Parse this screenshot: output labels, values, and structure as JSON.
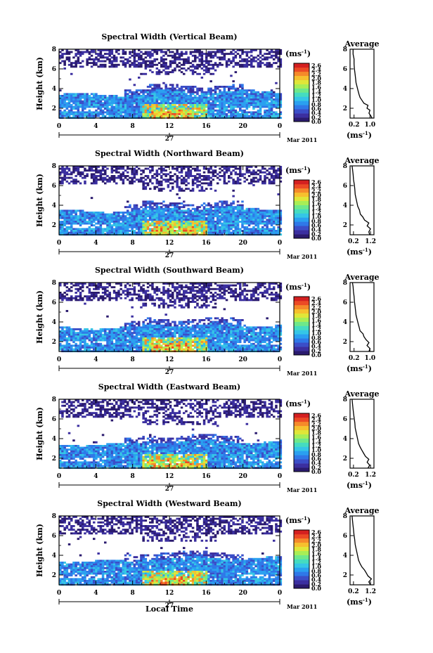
{
  "chart_data": [
    {
      "type": "heatmap",
      "title": "Spectral Width (Vertical Beam)",
      "ylabel": "Height (km)",
      "y_ticks": [
        "2",
        "4",
        "6",
        "8"
      ],
      "x_ticks": [
        "0",
        "4",
        "8",
        "12",
        "16",
        "20",
        "0"
      ],
      "day_label": "27",
      "date_label": "Mar 2011",
      "xlim": [
        0,
        24
      ],
      "ylim": [
        1,
        8
      ],
      "colorbar": {
        "units": "(ms",
        "units_exp": "-1",
        "units_close": ")",
        "ticks": [
          "2.6",
          "2.4",
          "2.2",
          "2.0",
          "1.8",
          "1.6",
          "1.4",
          "1.2",
          "1.0",
          "0.8",
          "0.6",
          "0.4",
          "0.2",
          "0.0"
        ]
      },
      "average": {
        "title": "Average",
        "x_ticks": [
          "0.2",
          "1.0"
        ],
        "y_ticks": [
          "2",
          "4",
          "6",
          "8"
        ],
        "xlim": [
          0.0,
          1.2
        ],
        "ylim": [
          1,
          8
        ],
        "xlabel": "(ms",
        "xlabel_exp": "-1",
        "xlabel_close": ")",
        "profile": [
          [
            1.1,
            1.0
          ],
          [
            1.05,
            1.2
          ],
          [
            0.95,
            1.5
          ],
          [
            1.0,
            1.8
          ],
          [
            0.85,
            2.0
          ],
          [
            0.9,
            2.3
          ],
          [
            0.7,
            2.5
          ],
          [
            0.6,
            2.8
          ],
          [
            0.5,
            3.1
          ],
          [
            0.45,
            3.4
          ],
          [
            0.4,
            3.8
          ],
          [
            0.35,
            4.2
          ],
          [
            0.3,
            4.6
          ],
          [
            0.28,
            5.0
          ],
          [
            0.25,
            5.5
          ],
          [
            0.22,
            6.0
          ],
          [
            0.2,
            6.5
          ],
          [
            0.2,
            7.0
          ],
          [
            0.15,
            7.5
          ],
          [
            0.15,
            8.0
          ]
        ]
      }
    },
    {
      "type": "heatmap",
      "title": "Spectral Width (Northward Beam)",
      "ylabel": "Height (km)",
      "y_ticks": [
        "2",
        "4",
        "6",
        "8"
      ],
      "x_ticks": [
        "0",
        "4",
        "8",
        "12",
        "16",
        "20",
        "0"
      ],
      "day_label": "27",
      "date_label": "Mar 2011",
      "xlim": [
        0,
        24
      ],
      "ylim": [
        1,
        8
      ],
      "colorbar": {
        "units": "(ms",
        "units_exp": "-1",
        "units_close": ")",
        "ticks": [
          "2.6",
          "2.4",
          "2.2",
          "2.0",
          "1.8",
          "1.6",
          "1.4",
          "1.2",
          "1.0",
          "0.8",
          "0.6",
          "0.4",
          "0.2",
          "0.0"
        ]
      },
      "average": {
        "title": "Average",
        "x_ticks": [
          "0.2",
          "1.2"
        ],
        "y_ticks": [
          "2",
          "4",
          "6",
          "8"
        ],
        "xlim": [
          0.0,
          1.4
        ],
        "ylim": [
          1,
          8
        ],
        "xlabel": "(ms",
        "xlabel_exp": "-1",
        "xlabel_close": ")",
        "profile": [
          [
            1.15,
            1.0
          ],
          [
            1.1,
            1.3
          ],
          [
            1.2,
            1.6
          ],
          [
            1.0,
            1.9
          ],
          [
            1.1,
            2.2
          ],
          [
            0.85,
            2.5
          ],
          [
            0.75,
            2.8
          ],
          [
            0.6,
            3.1
          ],
          [
            0.55,
            3.5
          ],
          [
            0.45,
            3.9
          ],
          [
            0.4,
            4.3
          ],
          [
            0.35,
            4.7
          ],
          [
            0.3,
            5.1
          ],
          [
            0.28,
            5.6
          ],
          [
            0.25,
            6.1
          ],
          [
            0.2,
            6.6
          ],
          [
            0.18,
            7.1
          ],
          [
            0.15,
            7.6
          ],
          [
            0.12,
            8.0
          ]
        ]
      }
    },
    {
      "type": "heatmap",
      "title": "Spectral Width (Southward Beam)",
      "ylabel": "Height (km)",
      "y_ticks": [
        "2",
        "4",
        "6",
        "8"
      ],
      "x_ticks": [
        "0",
        "4",
        "8",
        "12",
        "16",
        "20",
        "0"
      ],
      "day_label": "27",
      "date_label": "Mar 2011",
      "xlim": [
        0,
        24
      ],
      "ylim": [
        1,
        8
      ],
      "colorbar": {
        "units": "(ms",
        "units_exp": "-1",
        "units_close": ")",
        "ticks": [
          "2.6",
          "2.4",
          "2.2",
          "2.0",
          "1.8",
          "1.6",
          "1.4",
          "1.2",
          "1.0",
          "0.8",
          "0.6",
          "0.4",
          "0.2",
          "0.0"
        ]
      },
      "average": {
        "title": "Average",
        "x_ticks": [
          "0.2",
          "1.0"
        ],
        "y_ticks": [
          "2",
          "4",
          "6",
          "8"
        ],
        "xlim": [
          0.0,
          1.2
        ],
        "ylim": [
          1,
          8
        ],
        "xlabel": "(ms",
        "xlabel_exp": "-1",
        "xlabel_close": ")",
        "profile": [
          [
            0.95,
            1.0
          ],
          [
            1.0,
            1.3
          ],
          [
            0.85,
            1.6
          ],
          [
            0.95,
            1.9
          ],
          [
            0.8,
            2.2
          ],
          [
            0.7,
            2.5
          ],
          [
            0.65,
            2.8
          ],
          [
            0.5,
            3.1
          ],
          [
            0.45,
            3.5
          ],
          [
            0.4,
            3.9
          ],
          [
            0.35,
            4.3
          ],
          [
            0.3,
            4.7
          ],
          [
            0.28,
            5.1
          ],
          [
            0.25,
            5.6
          ],
          [
            0.22,
            6.1
          ],
          [
            0.2,
            6.6
          ],
          [
            0.17,
            7.1
          ],
          [
            0.15,
            7.6
          ],
          [
            0.12,
            8.0
          ]
        ]
      }
    },
    {
      "type": "heatmap",
      "title": "Spectral Width (Eastward Beam)",
      "ylabel": "Height (km)",
      "y_ticks": [
        "2",
        "4",
        "6",
        "8"
      ],
      "x_ticks": [
        "0",
        "4",
        "8",
        "12",
        "16",
        "20",
        "0"
      ],
      "day_label": "27",
      "date_label": "Mar 2011",
      "xlim": [
        0,
        24
      ],
      "ylim": [
        1,
        8
      ],
      "colorbar": {
        "units": "(ms",
        "units_exp": "-1",
        "units_close": ")",
        "ticks": [
          "2.6",
          "2.4",
          "2.2",
          "2.0",
          "1.8",
          "1.6",
          "1.4",
          "1.2",
          "1.0",
          "0.8",
          "0.6",
          "0.4",
          "0.2",
          "0.0"
        ]
      },
      "average": {
        "title": "Average",
        "x_ticks": [
          "0.2",
          "1.2"
        ],
        "y_ticks": [
          "2",
          "4",
          "6",
          "8"
        ],
        "xlim": [
          0.0,
          1.4
        ],
        "ylim": [
          1,
          8
        ],
        "xlabel": "(ms",
        "xlabel_exp": "-1",
        "xlabel_close": ")",
        "profile": [
          [
            1.05,
            1.0
          ],
          [
            1.15,
            1.3
          ],
          [
            1.0,
            1.6
          ],
          [
            1.1,
            1.9
          ],
          [
            0.9,
            2.2
          ],
          [
            0.8,
            2.5
          ],
          [
            0.7,
            2.8
          ],
          [
            0.6,
            3.1
          ],
          [
            0.5,
            3.5
          ],
          [
            0.45,
            3.9
          ],
          [
            0.4,
            4.3
          ],
          [
            0.35,
            4.7
          ],
          [
            0.3,
            5.1
          ],
          [
            0.28,
            5.6
          ],
          [
            0.24,
            6.1
          ],
          [
            0.2,
            6.6
          ],
          [
            0.17,
            7.1
          ],
          [
            0.14,
            7.6
          ],
          [
            0.12,
            8.0
          ]
        ]
      }
    },
    {
      "type": "heatmap",
      "title": "Spectral Width (Westward Beam)",
      "ylabel": "Height (km)",
      "y_ticks": [
        "2",
        "4",
        "6",
        "8"
      ],
      "x_ticks": [
        "0",
        "4",
        "8",
        "12",
        "16",
        "20",
        "0"
      ],
      "day_label": "27",
      "date_label": "Mar 2011",
      "xlim": [
        0,
        24
      ],
      "ylim": [
        1,
        8
      ],
      "colorbar": {
        "units": "(ms",
        "units_exp": "-1",
        "units_close": ")",
        "ticks": [
          "2.6",
          "2.4",
          "2.2",
          "2.0",
          "1.8",
          "1.6",
          "1.4",
          "1.2",
          "1.0",
          "0.8",
          "0.6",
          "0.4",
          "0.2",
          "0.0"
        ]
      },
      "average": {
        "title": "Average",
        "x_ticks": [
          "0.2",
          "1.2"
        ],
        "y_ticks": [
          "2",
          "4",
          "6",
          "8"
        ],
        "xlim": [
          0.0,
          1.4
        ],
        "ylim": [
          1,
          8
        ],
        "xlabel": "(ms",
        "xlabel_exp": "-1",
        "xlabel_close": ")",
        "profile": [
          [
            1.2,
            1.0
          ],
          [
            1.1,
            1.3
          ],
          [
            1.25,
            1.6
          ],
          [
            1.05,
            1.9
          ],
          [
            0.95,
            2.2
          ],
          [
            0.85,
            2.5
          ],
          [
            0.7,
            2.8
          ],
          [
            0.6,
            3.1
          ],
          [
            0.5,
            3.5
          ],
          [
            0.45,
            3.9
          ],
          [
            0.4,
            4.3
          ],
          [
            0.35,
            4.7
          ],
          [
            0.3,
            5.1
          ],
          [
            0.27,
            5.6
          ],
          [
            0.23,
            6.1
          ],
          [
            0.2,
            6.6
          ],
          [
            0.17,
            7.1
          ],
          [
            0.14,
            7.6
          ],
          [
            0.12,
            8.0
          ]
        ]
      }
    }
  ],
  "xlabel": "Local Time",
  "colormap": [
    "#2a1a6e",
    "#3b2fa0",
    "#3b4ec8",
    "#2f78e8",
    "#2aa0f0",
    "#35c6e6",
    "#45dcc0",
    "#6ee88a",
    "#a8ee55",
    "#e0e638",
    "#f6c02e",
    "#f58a2a",
    "#ec4a25",
    "#d42020"
  ]
}
